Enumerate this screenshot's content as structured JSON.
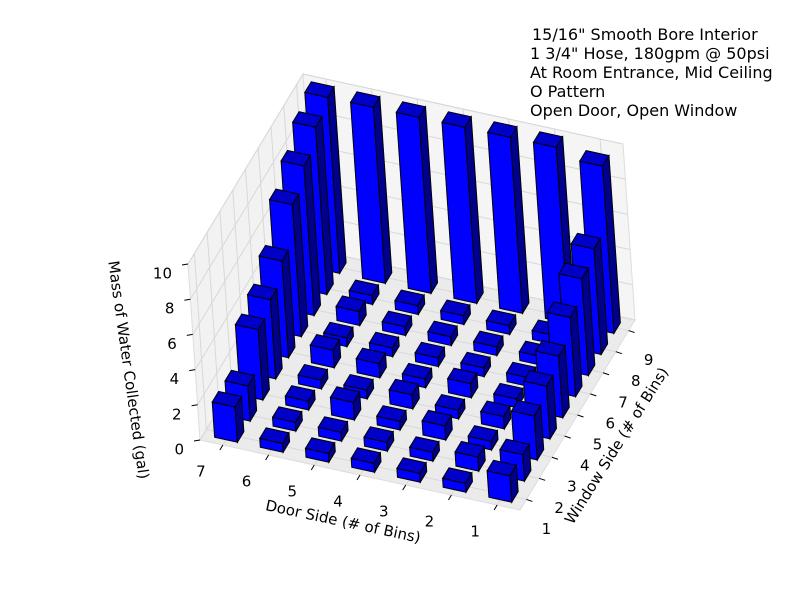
{
  "chart_data": {
    "type": "bar3d",
    "annotations": [
      "15/16\" Smooth Bore Interior",
      "1 3/4\" Hose, 180gpm @ 50psi",
      "At Room Entrance, Mid Ceiling",
      "O Pattern",
      "Open Door, Open Window"
    ],
    "xlabel": "Door Side (# of Bins)",
    "ylabel": "Window Side (# of Bins)",
    "zlabel": "Mass of Water Collected (gal)",
    "xticks": [
      1,
      2,
      3,
      4,
      5,
      6,
      7
    ],
    "yticks": [
      1,
      2,
      3,
      4,
      5,
      6,
      7,
      8,
      9
    ],
    "xlim": [
      0.5,
      7.5
    ],
    "ylim": [
      0.5,
      9.5
    ],
    "zlim": [
      0,
      10
    ],
    "zticks": [
      0,
      2,
      4,
      6,
      8,
      10
    ],
    "grid": true,
    "color": "#0000ff",
    "values": [
      [
        1.5,
        0.5,
        0.5,
        0.5,
        0.5,
        0.5,
        2
      ],
      [
        1.5,
        0.8,
        0.5,
        0.5,
        0.5,
        0.5,
        2
      ],
      [
        2.5,
        0.5,
        0.8,
        0.5,
        1,
        0.5,
        4
      ],
      [
        3,
        0.7,
        0.5,
        0.8,
        0.5,
        0.5,
        4.5
      ],
      [
        3.5,
        0.5,
        0.8,
        0.5,
        0.8,
        1,
        5.5
      ],
      [
        4.5,
        0.5,
        0.5,
        0.5,
        0.5,
        0.5,
        7.5
      ],
      [
        5.5,
        0.5,
        0.5,
        0.5,
        0.5,
        0.8,
        8.5
      ],
      [
        6,
        0.5,
        0.5,
        0.5,
        0.5,
        0.5,
        9.5
      ],
      [
        9.5,
        10,
        10,
        10,
        10,
        10,
        10
      ]
    ]
  }
}
